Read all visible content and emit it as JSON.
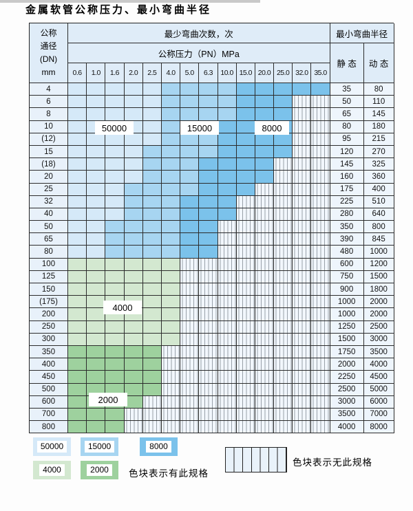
{
  "title": "金属软管公称压力、最小弯曲半径",
  "header": {
    "dn_lines": [
      "公称",
      "通径",
      "(DN)",
      "mm"
    ],
    "bend_cycles": "最少弯曲次数，次",
    "pressure_title": "公称压力（PN）MPa",
    "pressures": [
      "0.6",
      "1.0",
      "1.6",
      "2.0",
      "2.5",
      "4.0",
      "5.0",
      "6.3",
      "10.0",
      "15.0",
      "20.0",
      "25.0",
      "32.0",
      "35.0"
    ],
    "radius_title": "最小弯曲半径",
    "static_label": "静 态",
    "dynamic_label": "动 态"
  },
  "rows": [
    {
      "dn": "4",
      "zone": "blue",
      "b15": 5,
      "b8": 9,
      "hatch": 14,
      "st": "35",
      "dy": "80"
    },
    {
      "dn": "6",
      "zone": "blue",
      "b15": 5,
      "b8": 9,
      "hatch": 12,
      "st": "50",
      "dy": "110"
    },
    {
      "dn": "8",
      "zone": "blue",
      "b15": 5,
      "b8": 9,
      "hatch": 12,
      "st": "65",
      "dy": "145"
    },
    {
      "dn": "10",
      "zone": "blue",
      "b15": 5,
      "b8": 8,
      "hatch": 12,
      "st": "80",
      "dy": "180"
    },
    {
      "dn": "(12)",
      "zone": "blue",
      "b15": 5,
      "b8": 8,
      "hatch": 12,
      "st": "95",
      "dy": "215"
    },
    {
      "dn": "15",
      "zone": "blue",
      "b15": 4,
      "b8": 8,
      "hatch": 12,
      "st": "120",
      "dy": "270"
    },
    {
      "dn": "(18)",
      "zone": "blue",
      "b15": 4,
      "b8": 7,
      "hatch": 11,
      "st": "145",
      "dy": "325"
    },
    {
      "dn": "20",
      "zone": "blue",
      "b15": 4,
      "b8": 7,
      "hatch": 11,
      "st": "160",
      "dy": "360"
    },
    {
      "dn": "25",
      "zone": "blue",
      "b15": 3,
      "b8": 7,
      "hatch": 10,
      "st": "175",
      "dy": "400"
    },
    {
      "dn": "32",
      "zone": "blue",
      "b15": 3,
      "b8": 6,
      "hatch": 9,
      "st": "225",
      "dy": "510"
    },
    {
      "dn": "40",
      "zone": "blue",
      "b15": 3,
      "b8": 6,
      "hatch": 9,
      "st": "280",
      "dy": "640"
    },
    {
      "dn": "50",
      "zone": "blue",
      "b15": 2,
      "b8": 6,
      "hatch": 8,
      "st": "350",
      "dy": "800"
    },
    {
      "dn": "65",
      "zone": "blue",
      "b15": 2,
      "b8": 6,
      "hatch": 8,
      "st": "390",
      "dy": "845"
    },
    {
      "dn": "80",
      "zone": "blue",
      "b15": 2,
      "b8": 6,
      "hatch": 8,
      "st": "480",
      "dy": "1000"
    },
    {
      "dn": "100",
      "zone": "g4",
      "b15": 0,
      "b8": 0,
      "hatch": 6,
      "st": "600",
      "dy": "1200"
    },
    {
      "dn": "125",
      "zone": "g4",
      "b15": 0,
      "b8": 0,
      "hatch": 6,
      "st": "750",
      "dy": "1500"
    },
    {
      "dn": "150",
      "zone": "g4",
      "b15": 0,
      "b8": 0,
      "hatch": 6,
      "st": "900",
      "dy": "1800"
    },
    {
      "dn": "(175)",
      "zone": "g4",
      "b15": 0,
      "b8": 0,
      "hatch": 6,
      "st": "1000",
      "dy": "2000"
    },
    {
      "dn": "200",
      "zone": "g4",
      "b15": 0,
      "b8": 0,
      "hatch": 6,
      "st": "1000",
      "dy": "2000"
    },
    {
      "dn": "250",
      "zone": "g4",
      "b15": 0,
      "b8": 0,
      "hatch": 6,
      "st": "1250",
      "dy": "2500"
    },
    {
      "dn": "300",
      "zone": "g4",
      "b15": 0,
      "b8": 0,
      "hatch": 6,
      "st": "1500",
      "dy": "3000"
    },
    {
      "dn": "350",
      "zone": "g2",
      "b15": 0,
      "b8": 0,
      "hatch": 5,
      "st": "1750",
      "dy": "3500"
    },
    {
      "dn": "400",
      "zone": "g2",
      "b15": 0,
      "b8": 0,
      "hatch": 5,
      "st": "2000",
      "dy": "4000"
    },
    {
      "dn": "450",
      "zone": "g2",
      "b15": 0,
      "b8": 0,
      "hatch": 5,
      "st": "2250",
      "dy": "4500"
    },
    {
      "dn": "500",
      "zone": "g2",
      "b15": 0,
      "b8": 0,
      "hatch": 5,
      "st": "2500",
      "dy": "5000"
    },
    {
      "dn": "600",
      "zone": "g2",
      "b15": 0,
      "b8": 0,
      "hatch": 4,
      "st": "3000",
      "dy": "6000"
    },
    {
      "dn": "700",
      "zone": "g2",
      "b15": 0,
      "b8": 0,
      "hatch": 3,
      "st": "3500",
      "dy": "7000"
    },
    {
      "dn": "800",
      "zone": "g2",
      "b15": 0,
      "b8": 0,
      "hatch": 3,
      "st": "4000",
      "dy": "8000"
    }
  ],
  "zone_labels": {
    "l50000": "50000",
    "l15000": "15000",
    "l8000": "8000",
    "l4000": "4000",
    "l2000": "2000"
  },
  "legend": {
    "swatches": [
      {
        "label": "50000",
        "zone": "z50000"
      },
      {
        "label": "15000",
        "zone": "z15000"
      },
      {
        "label": "8000",
        "zone": "z8000"
      },
      {
        "label": "4000",
        "zone": "z4000"
      },
      {
        "label": "2000",
        "zone": "z2000"
      }
    ],
    "has_spec": "色块表示有此规格",
    "no_spec": "色块表示无此规格"
  },
  "colors": {
    "c50000": "#d5e9f8",
    "c15000": "#a7d5f1",
    "c8000": "#7bc2eb",
    "c4000": "#d3e8d0",
    "c2000": "#9ed19e",
    "chead": "#dfecf8",
    "cdncell": "#e8f1fa",
    "cvalcell": "#eef5fc",
    "chatchbg": "#f2f7fd",
    "chatchline": "#98a0a8"
  }
}
